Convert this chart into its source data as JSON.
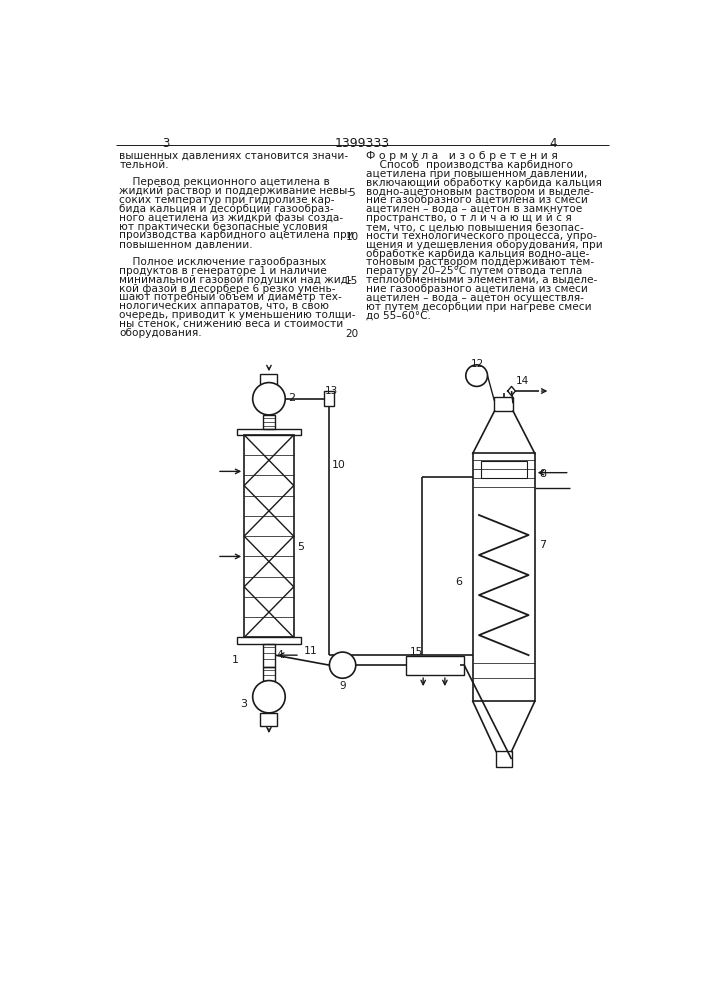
{
  "title": "1399333",
  "page_left": "3",
  "page_right": "4",
  "bg_color": "#ffffff",
  "line_color": "#1a1a1a",
  "text_color": "#1a1a1a",
  "left_text": [
    "вышенных давлениях становится значи-",
    "тельной.",
    "",
    "    Перевод рекционного ацетилена в",
    "жидкий раствор и поддерживание невы-",
    "соких температур при гидролизе кар-",
    "бида кальция и десорбции газообраз-",
    "ного ацетилена из жидкрй фазы созда-",
    "ют практически безопасные условия",
    "производства карбидного ацетилена при",
    "повышенном давлении.",
    "",
    "    Полное исключение газообразных",
    "продуктов в генераторе 1 и наличие",
    "минимальной газовой подушки над жид-",
    "кой фазой в десорбере 6 резко умень-",
    "шают потребный объем и диаметр тех-",
    "нологических аппаратов, что, в свою",
    "очередь, приводит к уменьшению толщи-",
    "ны стенок, снижению веса и стоимости",
    "оборудования."
  ],
  "right_text_title": "Ф о р м у л а   и з о б р е т е н и я",
  "right_text": [
    "    Способ  производства карбидного",
    "ацетилена при повышенном давлении,",
    "включающий обработку карбида кальция",
    "водно-ацетоновым раствором и выделе-",
    "ние газообразного ацетилена из смеси",
    "ацетилен – вода – ацетон в замкнутое",
    "пространство, о т л и ч а ю щ и й с я",
    "тем, что, с целью повышения безопас-",
    "ности технологического процесса, упро-",
    "щения и удешевления оборудования, при",
    "обработке карбида кальция водно-аце-",
    "тоновым раствором поддерживают тем-",
    "пературу 20–25°С путем отвода тепла",
    "теплообменными элементами, а выделе-",
    "ние газообразного ацетилена из смеси",
    "ацетилен – вода – ацетон осуществля-",
    "ют путем десорбции при нагреве смеси",
    "до 55–60°С."
  ]
}
